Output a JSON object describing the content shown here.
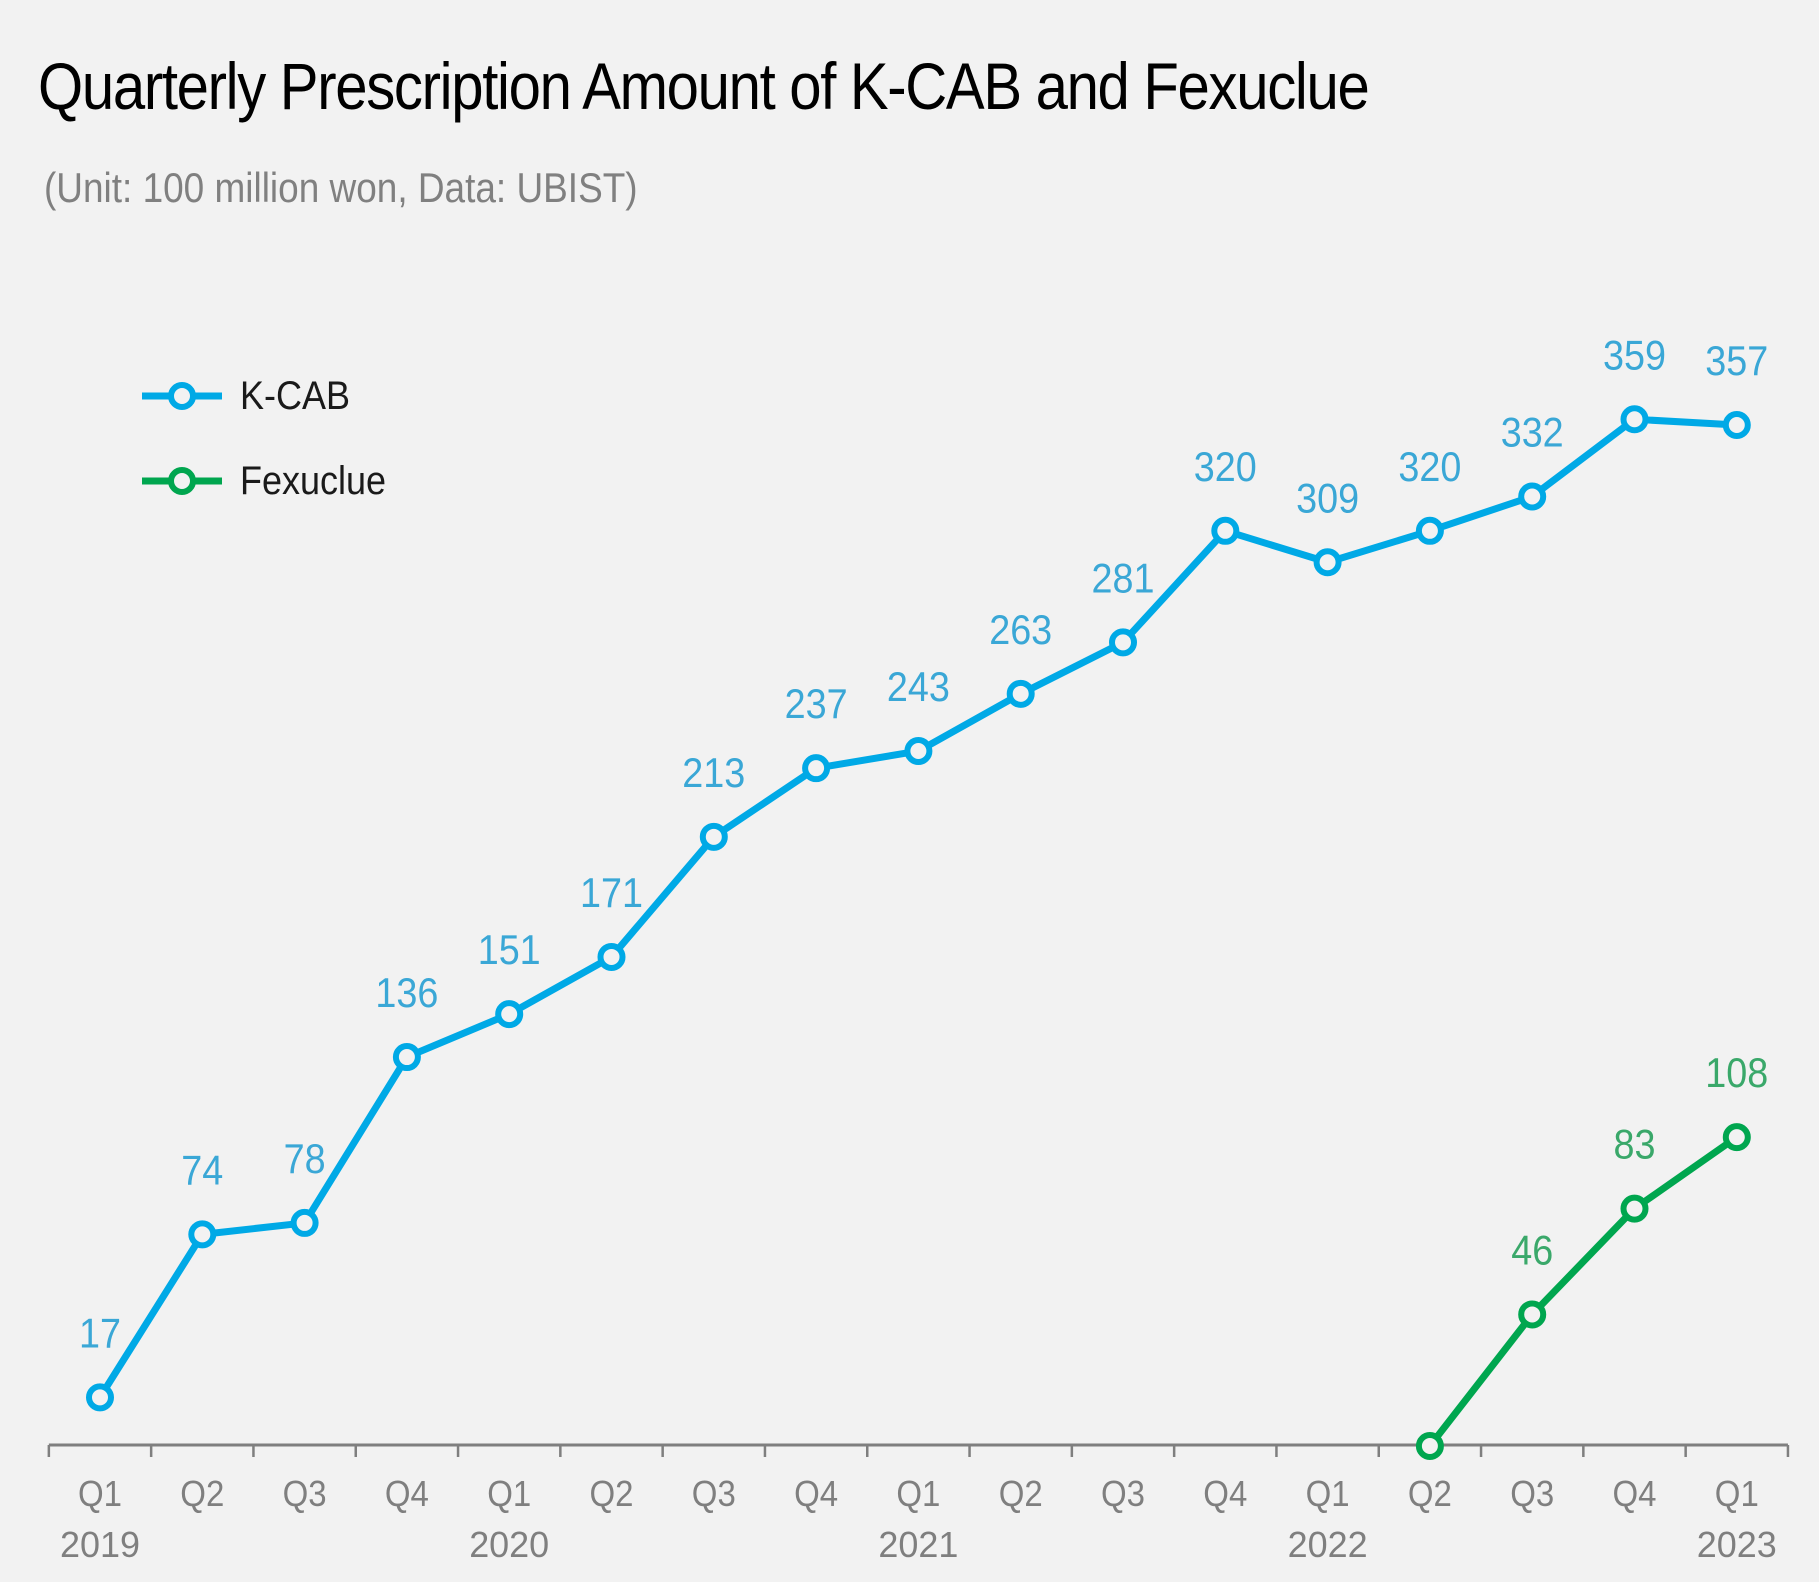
{
  "chart_data": {
    "type": "line",
    "title": "Quarterly Prescription Amount of K-CAB and Fexuclue",
    "subtitle": "(Unit: 100 million won, Data: UBIST)",
    "xlabel": "",
    "ylabel": "",
    "ylim": [
      0,
      380
    ],
    "grid": false,
    "legend_position": "top-left",
    "categories": [
      "Q1",
      "Q2",
      "Q3",
      "Q4",
      "Q1",
      "Q2",
      "Q3",
      "Q4",
      "Q1",
      "Q2",
      "Q3",
      "Q4",
      "Q1",
      "Q2",
      "Q3",
      "Q4",
      "Q1"
    ],
    "year_labels": [
      {
        "index": 0,
        "label": "2019"
      },
      {
        "index": 4,
        "label": "2020"
      },
      {
        "index": 8,
        "label": "2021"
      },
      {
        "index": 12,
        "label": "2022"
      },
      {
        "index": 16,
        "label": "2023"
      }
    ],
    "series": [
      {
        "name": "K-CAB",
        "color": "#00a9e6",
        "label_color": "#3aa7d6",
        "values": [
          17,
          74,
          78,
          136,
          151,
          171,
          213,
          237,
          243,
          263,
          281,
          320,
          309,
          320,
          332,
          359,
          357
        ]
      },
      {
        "name": "Fexuclue",
        "color": "#00a64f",
        "label_color": "#3aa86a",
        "values": [
          null,
          null,
          null,
          null,
          null,
          null,
          null,
          null,
          null,
          null,
          null,
          null,
          null,
          0,
          46,
          83,
          108
        ],
        "value_labels": [
          null,
          null,
          null,
          null,
          null,
          null,
          null,
          null,
          null,
          null,
          null,
          null,
          null,
          null,
          "46",
          "83",
          "108"
        ]
      }
    ]
  },
  "axis_color": "#7f7f7f",
  "tick_label_color": "#7f7f7f"
}
